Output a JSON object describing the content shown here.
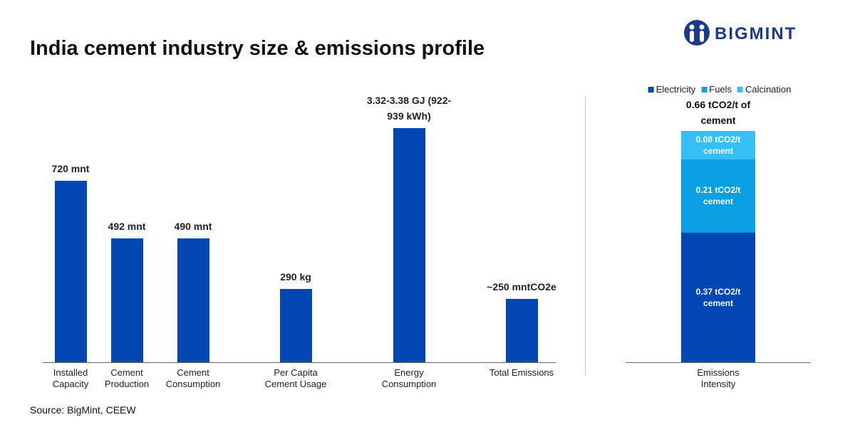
{
  "header": {
    "title": "India cement industry size & emissions profile",
    "logo": "BIGMINT"
  },
  "chart_data": [
    {
      "type": "bar",
      "categories": [
        "Installed Capacity",
        "Cement Production",
        "Cement Consumption",
        "Per Capita Cement Usage",
        "Energy Consumption",
        "Total Emissions"
      ],
      "values": [
        720,
        492,
        490,
        290,
        930,
        250
      ],
      "value_labels": [
        "720 mnt",
        "492 mnt",
        "490 mnt",
        "290 kg",
        "3.32-3.38 GJ (922-939 kWh)",
        "~250 mntCO2e"
      ],
      "color": "#0047b3"
    },
    {
      "type": "stacked_bar",
      "categories": [
        "Emissions Intensity"
      ],
      "total_label": "0.66 tCO2/t of cement",
      "legend": "top",
      "series": [
        {
          "name": "Electricity",
          "color": "#0047b3",
          "values": [
            0.37
          ],
          "value_labels": [
            "0.37 tCO2/t cement"
          ]
        },
        {
          "name": "Fuels",
          "color": "#0a9fe0",
          "values": [
            0.21
          ],
          "value_labels": [
            "0.21 tCO2/t cement"
          ]
        },
        {
          "name": "Calcination",
          "color": "#35c0f4",
          "values": [
            0.08
          ],
          "value_labels": [
            "0.08 tCO2/t cement"
          ]
        }
      ]
    }
  ],
  "source": "Source: BigMint, CEEW"
}
